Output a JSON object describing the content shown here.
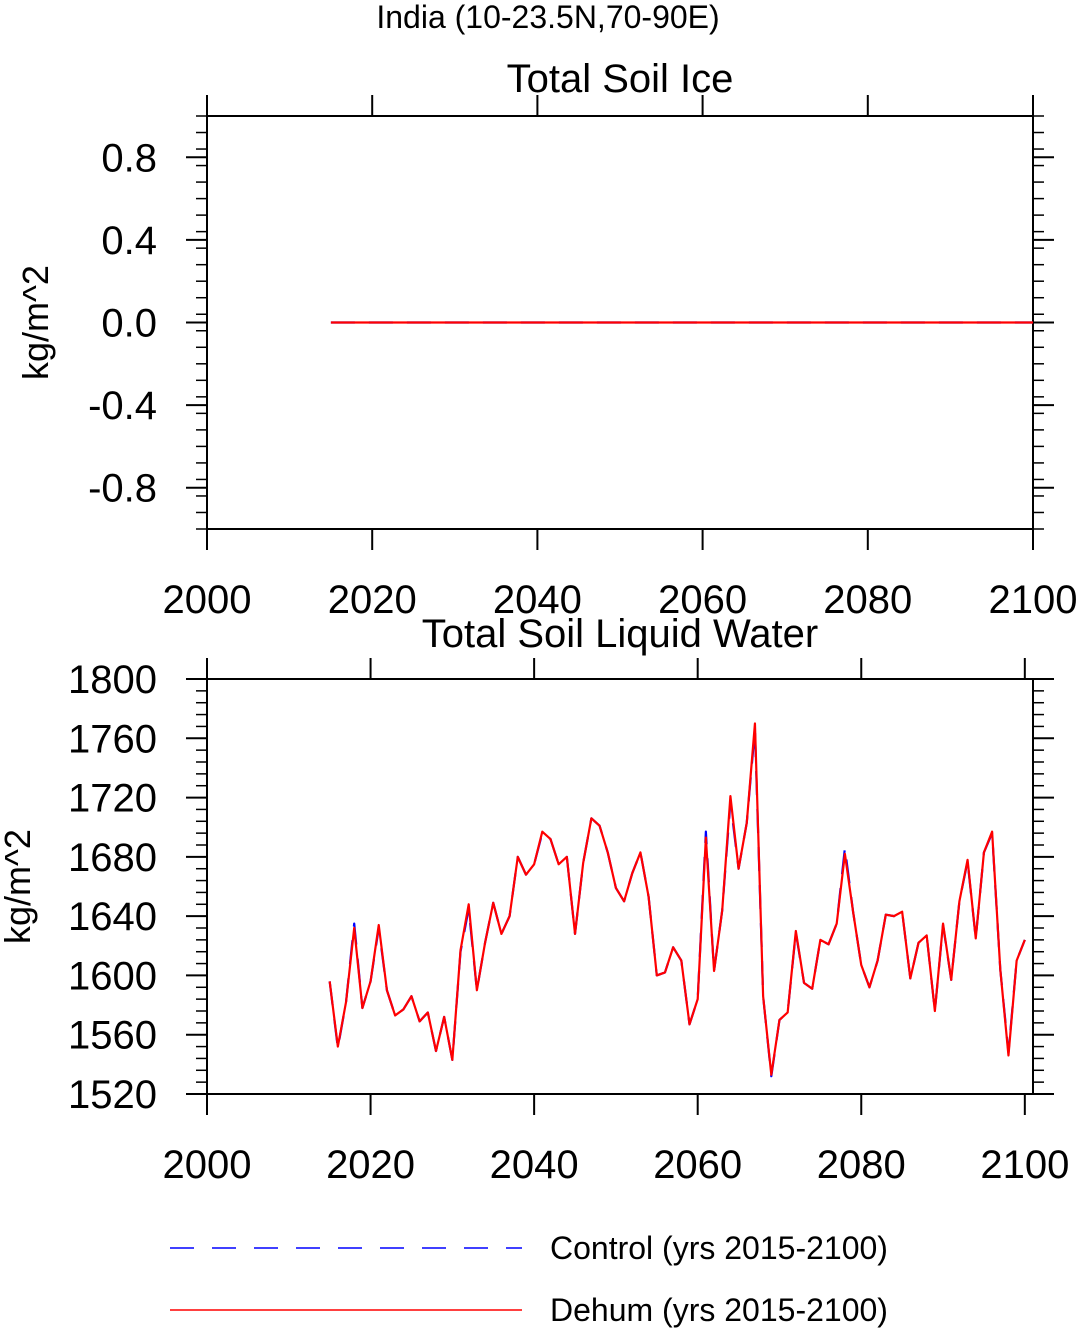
{
  "page_title": "India (10-23.5N,70-90E)",
  "chart_data": [
    {
      "type": "line",
      "title": "Total Soil Ice",
      "xlabel": "",
      "ylabel": "kg/m^2",
      "xlim": [
        2000,
        2100
      ],
      "ylim": [
        -1.0,
        1.0
      ],
      "x_ticks": [
        2000,
        2020,
        2040,
        2060,
        2080,
        2100
      ],
      "y_ticks": [
        -0.8,
        -0.4,
        0.0,
        0.4,
        0.8
      ],
      "y_tick_labels": [
        "-0.8",
        "-0.4",
        "0.0",
        "0.4",
        "0.8"
      ],
      "grid": false,
      "x_start": 2015,
      "series": [
        {
          "name": "Control (yrs 2015-2100)",
          "color": "#0000ff",
          "style": "dashed",
          "values": [
            0,
            0,
            0,
            0,
            0,
            0,
            0,
            0,
            0,
            0,
            0,
            0,
            0,
            0,
            0,
            0,
            0,
            0,
            0,
            0,
            0,
            0,
            0,
            0,
            0,
            0,
            0,
            0,
            0,
            0,
            0,
            0,
            0,
            0,
            0,
            0,
            0,
            0,
            0,
            0,
            0,
            0,
            0,
            0,
            0,
            0,
            0,
            0,
            0,
            0,
            0,
            0,
            0,
            0,
            0,
            0,
            0,
            0,
            0,
            0,
            0,
            0,
            0,
            0,
            0,
            0,
            0,
            0,
            0,
            0,
            0,
            0,
            0,
            0,
            0,
            0,
            0,
            0,
            0,
            0,
            0,
            0,
            0,
            0,
            0,
            0
          ]
        },
        {
          "name": "Dehum (yrs 2015-2100)",
          "color": "#ff0000",
          "style": "solid",
          "values": [
            0,
            0,
            0,
            0,
            0,
            0,
            0,
            0,
            0,
            0,
            0,
            0,
            0,
            0,
            0,
            0,
            0,
            0,
            0,
            0,
            0,
            0,
            0,
            0,
            0,
            0,
            0,
            0,
            0,
            0,
            0,
            0,
            0,
            0,
            0,
            0,
            0,
            0,
            0,
            0,
            0,
            0,
            0,
            0,
            0,
            0,
            0,
            0,
            0,
            0,
            0,
            0,
            0,
            0,
            0,
            0,
            0,
            0,
            0,
            0,
            0,
            0,
            0,
            0,
            0,
            0,
            0,
            0,
            0,
            0,
            0,
            0,
            0,
            0,
            0,
            0,
            0,
            0,
            0,
            0,
            0,
            0,
            0,
            0,
            0,
            0
          ]
        }
      ]
    },
    {
      "type": "line",
      "title": "Total Soil Liquid Water",
      "xlabel": "",
      "ylabel": "kg/m^2",
      "xlim": [
        2000,
        2101
      ],
      "ylim": [
        1520,
        1800
      ],
      "x_ticks": [
        2000,
        2020,
        2040,
        2060,
        2080,
        2100
      ],
      "y_ticks": [
        1520,
        1560,
        1600,
        1640,
        1680,
        1720,
        1760,
        1800
      ],
      "y_tick_labels": [
        "1520",
        "1560",
        "1600",
        "1640",
        "1680",
        "1720",
        "1760",
        "1800"
      ],
      "grid": false,
      "x_start": 2015,
      "series": [
        {
          "name": "Control (yrs 2015-2100)",
          "color": "#0000ff",
          "style": "dashed",
          "values": [
            1596,
            1551,
            1582,
            1635,
            1578,
            1596,
            1632,
            1590,
            1573,
            1577,
            1586,
            1569,
            1575,
            1549,
            1572,
            1543,
            1616,
            1645,
            1590,
            1622,
            1649,
            1628,
            1640,
            1680,
            1668,
            1675,
            1696,
            1692,
            1675,
            1680,
            1628,
            1676,
            1706,
            1701,
            1683,
            1659,
            1650,
            1669,
            1683,
            1653,
            1600,
            1602,
            1619,
            1610,
            1567,
            1584,
            1697,
            1603,
            1644,
            1717,
            1672,
            1703,
            1766,
            1586,
            1532,
            1570,
            1575,
            1629,
            1595,
            1591,
            1624,
            1621,
            1635,
            1686,
            1643,
            1607,
            1592,
            1610,
            1641,
            1640,
            1643,
            1598,
            1622,
            1627,
            1576,
            1634,
            1597,
            1650,
            1677,
            1625,
            1683,
            1696,
            1604,
            1548,
            1610,
            1624
          ]
        },
        {
          "name": "Dehum (yrs 2015-2100)",
          "color": "#ff0000",
          "style": "solid",
          "values": [
            1596,
            1552,
            1582,
            1632,
            1578,
            1596,
            1634,
            1590,
            1573,
            1577,
            1586,
            1569,
            1575,
            1549,
            1572,
            1543,
            1617,
            1648,
            1590,
            1622,
            1649,
            1628,
            1640,
            1680,
            1668,
            1675,
            1697,
            1692,
            1675,
            1680,
            1628,
            1676,
            1706,
            1701,
            1683,
            1659,
            1650,
            1669,
            1683,
            1653,
            1600,
            1602,
            1619,
            1610,
            1567,
            1584,
            1693,
            1603,
            1644,
            1721,
            1672,
            1703,
            1770,
            1586,
            1533,
            1570,
            1575,
            1630,
            1595,
            1591,
            1624,
            1621,
            1635,
            1682,
            1643,
            1607,
            1592,
            1610,
            1641,
            1640,
            1643,
            1598,
            1622,
            1627,
            1576,
            1635,
            1597,
            1650,
            1678,
            1625,
            1683,
            1697,
            1604,
            1546,
            1610,
            1624
          ]
        }
      ]
    }
  ],
  "legend": {
    "placement": "bottom-center",
    "items": [
      {
        "label": "Control (yrs 2015-2100)",
        "color": "#0000ff",
        "style": "dashed"
      },
      {
        "label": "Dehum (yrs 2015-2100)",
        "color": "#ff0000",
        "style": "solid"
      }
    ]
  }
}
